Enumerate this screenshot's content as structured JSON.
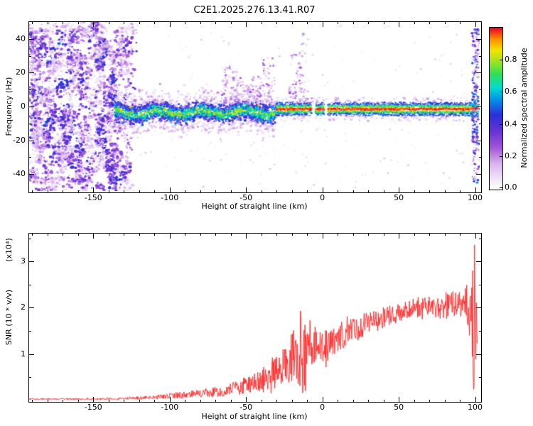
{
  "title": "C2E1.2025.276.13.41.R07",
  "chart_data": [
    {
      "type": "heatmap",
      "title": "C2E1.2025.276.13.41.R07",
      "xlabel": "Height of straight line (km)",
      "ylabel": "Frequency (Hz)",
      "xlim": [
        -192,
        103
      ],
      "ylim": [
        -50,
        50
      ],
      "xticks": [
        -150,
        -100,
        -50,
        0,
        50,
        100
      ],
      "yticks": [
        -40,
        -20,
        0,
        20,
        40
      ],
      "x_minor_step": 10,
      "y_minor_step": 10,
      "colorbar": {
        "label": "Normalized spectral amplitude",
        "ticks": [
          0.0,
          0.2,
          0.4,
          0.6,
          0.8
        ],
        "range": [
          0,
          1
        ],
        "stops": [
          {
            "v": 0.0,
            "c": "#ffffff"
          },
          {
            "v": 0.06,
            "c": "#f2e8f9"
          },
          {
            "v": 0.16,
            "c": "#d9b3ec"
          },
          {
            "v": 0.26,
            "c": "#a055d8"
          },
          {
            "v": 0.36,
            "c": "#6633d4"
          },
          {
            "v": 0.46,
            "c": "#2a2fd8"
          },
          {
            "v": 0.56,
            "c": "#0096e8"
          },
          {
            "v": 0.63,
            "c": "#00dcd0"
          },
          {
            "v": 0.71,
            "c": "#2ede5a"
          },
          {
            "v": 0.79,
            "c": "#9fe41e"
          },
          {
            "v": 0.86,
            "c": "#f2e400"
          },
          {
            "v": 0.93,
            "c": "#ff8a00"
          },
          {
            "v": 1.0,
            "c": "#e60026"
          }
        ]
      },
      "features": {
        "broadband_noise": {
          "x_range": [
            -192,
            -128
          ],
          "y_range": [
            -50,
            50
          ],
          "amplitude_range": [
            0.04,
            0.5
          ]
        },
        "sparse_noise": {
          "x_range": [
            -128,
            103
          ],
          "y_range": [
            -48,
            48
          ]
        },
        "signal_band_diffuse": {
          "x_range": [
            -136,
            -30
          ],
          "center_hz": -3.5,
          "halfwidth_hz": 5,
          "amplitude_range": [
            0.12,
            0.88
          ]
        },
        "signal_band_narrow": {
          "x_range": [
            -30,
            102
          ],
          "center_hz": -1.5,
          "halfwidth_hz": 2.5,
          "core_amplitude": 1.0,
          "gaps_km": [
            [
              -7,
              -4.5
            ],
            [
              1.5,
              3.5
            ]
          ]
        },
        "plumes": [
          {
            "x0": -66,
            "x1": -52,
            "ymax": 24
          },
          {
            "x0": -50,
            "x1": -40,
            "ymax": 18
          },
          {
            "x0": -40,
            "x1": -31,
            "ymax": 30
          },
          {
            "x0": -22,
            "x1": -14,
            "ymax": 32
          },
          {
            "x0": -15,
            "x1": -9,
            "ymax": 44
          }
        ],
        "right_edge_burst": {
          "x_range": [
            98,
            102.5
          ],
          "y_range": [
            -46,
            46
          ]
        }
      },
      "seed": 20251341
    },
    {
      "type": "line",
      "xlabel": "Height of straight line (km)",
      "ylabel": "SNR (10 * v/v)",
      "y_scale_note": "(x10⁴)",
      "xlim": [
        -192,
        103
      ],
      "ylim": [
        0,
        3.6
      ],
      "xticks": [
        -150,
        -100,
        -50,
        0,
        50,
        100
      ],
      "yticks": [
        1,
        2,
        3
      ],
      "x_minor_step": 10,
      "y_minor_step": 0.5,
      "series": [
        {
          "name": "SNR",
          "color": "#ff2020",
          "step_km": 0.3,
          "envelope": [
            [
              -192,
              0.03,
              0.015
            ],
            [
              -150,
              0.03,
              0.02
            ],
            [
              -130,
              0.04,
              0.025
            ],
            [
              -115,
              0.06,
              0.04
            ],
            [
              -105,
              0.08,
              0.05
            ],
            [
              -95,
              0.11,
              0.07
            ],
            [
              -85,
              0.13,
              0.08
            ],
            [
              -75,
              0.17,
              0.1
            ],
            [
              -65,
              0.2,
              0.12
            ],
            [
              -55,
              0.28,
              0.16
            ],
            [
              -48,
              0.35,
              0.2
            ],
            [
              -42,
              0.4,
              0.25
            ],
            [
              -36,
              0.5,
              0.3
            ],
            [
              -30,
              0.6,
              0.38
            ],
            [
              -25,
              0.75,
              0.45
            ],
            [
              -20,
              0.9,
              0.55
            ],
            [
              -16,
              1.1,
              0.75
            ],
            [
              -13,
              1.2,
              0.95
            ],
            [
              -11,
              1.0,
              0.85
            ],
            [
              -9,
              0.9,
              0.65
            ],
            [
              -7,
              1.1,
              0.45
            ],
            [
              -4,
              1.2,
              0.4
            ],
            [
              0,
              1.25,
              0.4
            ],
            [
              4,
              1.2,
              0.35
            ],
            [
              8,
              1.3,
              0.3
            ],
            [
              12,
              1.4,
              0.3
            ],
            [
              16,
              1.45,
              0.28
            ],
            [
              20,
              1.55,
              0.28
            ],
            [
              25,
              1.6,
              0.25
            ],
            [
              30,
              1.7,
              0.25
            ],
            [
              35,
              1.75,
              0.22
            ],
            [
              40,
              1.8,
              0.22
            ],
            [
              45,
              1.85,
              0.2
            ],
            [
              50,
              1.92,
              0.18
            ],
            [
              55,
              1.95,
              0.18
            ],
            [
              60,
              2.0,
              0.2
            ],
            [
              65,
              2.0,
              0.22
            ],
            [
              70,
              2.02,
              0.25
            ],
            [
              75,
              2.05,
              0.28
            ],
            [
              80,
              2.05,
              0.3
            ],
            [
              85,
              2.1,
              0.32
            ],
            [
              90,
              2.1,
              0.35
            ],
            [
              94,
              2.05,
              0.45
            ],
            [
              96,
              1.95,
              0.8
            ],
            [
              98,
              1.9,
              1.4
            ],
            [
              99.5,
              1.8,
              1.7
            ],
            [
              100.5,
              1.4,
              1.2
            ],
            [
              101.5,
              0.9,
              0.6
            ]
          ]
        }
      ],
      "seed": 77021
    }
  ]
}
